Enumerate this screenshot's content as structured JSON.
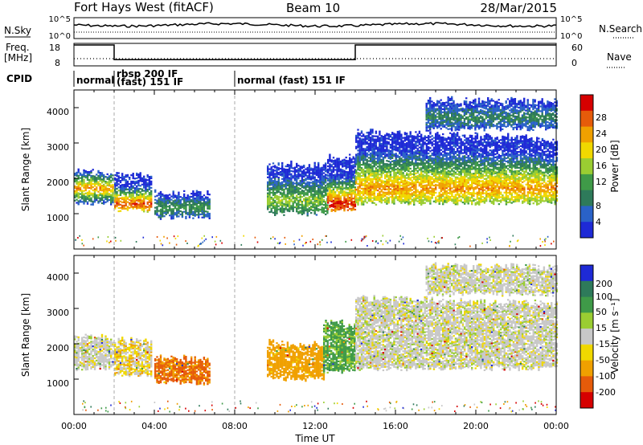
{
  "header": {
    "radar": "Fort Hays West (fitACF)",
    "beam": "Beam 10",
    "date": "28/Mar/2015"
  },
  "status_panel": {
    "nsky_label": "N.Sky",
    "nsearch_label": "N.Search",
    "nsky_ticks": [
      "10^5",
      "10^0"
    ],
    "nsearch_ticks": [
      "10^5",
      "10^0"
    ],
    "freq_label": "Freq.",
    "freq_unit": "[MHz]",
    "freq_ticks": [
      "18",
      "8"
    ],
    "nave_label": "Nave",
    "nave_ticks": [
      "60",
      "0"
    ],
    "cpid_label": "CPID",
    "cpid_segments": [
      {
        "label": "normal",
        "start_hour": 0,
        "end_hour": 2
      },
      {
        "label": "rbsp 200 IF",
        "start_hour": 2,
        "end_hour": 8
      },
      {
        "label": "(fast) 151 IF",
        "start_hour": 2,
        "end_hour": 8
      },
      {
        "label": "normal (fast) 151 IF",
        "start_hour": 8,
        "end_hour": 24
      }
    ],
    "freq_mhz": [
      {
        "start_hour": 0,
        "end_hour": 2,
        "value": 18
      },
      {
        "start_hour": 2,
        "end_hour": 14,
        "value": 11
      },
      {
        "start_hour": 14,
        "end_hour": 24,
        "value": 18
      }
    ]
  },
  "chart_data": [
    {
      "type": "heatmap",
      "panel": "power",
      "ylabel": "Slant Range [km]",
      "ylim": [
        0,
        4500
      ],
      "yticks": [
        "1000",
        "2000",
        "3000",
        "4000"
      ],
      "xlim_hours": [
        0,
        24
      ],
      "colorbar_label": "Power [dB]",
      "colorbar_ticks": [
        "4",
        "8",
        "12",
        "16",
        "20",
        "24",
        "28"
      ],
      "colors": [
        "#1e2ad6",
        "#2a62c8",
        "#2e7a5a",
        "#3f9a48",
        "#9acd32",
        "#f0d800",
        "#f0a000",
        "#e65b0a",
        "#d60000"
      ],
      "regions": [
        {
          "start_hour": 0,
          "end_hour": 1.9,
          "range_km": [
            1300,
            2200
          ],
          "core_km": 1700,
          "peak_db": 22
        },
        {
          "start_hour": 2,
          "end_hour": 3.8,
          "range_km": [
            1100,
            2100
          ],
          "core_km": 1250,
          "peak_db": 26
        },
        {
          "start_hour": 4,
          "end_hour": 6.7,
          "range_km": [
            900,
            1600
          ],
          "core_km": 1150,
          "peak_db": 10
        },
        {
          "start_hour": 9.6,
          "end_hour": 12.6,
          "range_km": [
            1000,
            2400
          ],
          "core_km": 1350,
          "peak_db": 14
        },
        {
          "start_hour": 12.6,
          "end_hour": 14.0,
          "range_km": [
            1100,
            2600
          ],
          "core_km": 1250,
          "peak_db": 28
        },
        {
          "start_hour": 14.0,
          "end_hour": 24,
          "range_km": [
            1300,
            3300
          ],
          "core_km": 1700,
          "peak_db": 22
        },
        {
          "start_hour": 17.5,
          "end_hour": 24,
          "range_km": [
            3400,
            4200
          ],
          "core_km": 3700,
          "peak_db": 8
        }
      ]
    },
    {
      "type": "heatmap",
      "panel": "velocity",
      "ylabel": "Slant Range [km]",
      "ylim": [
        0,
        4500
      ],
      "yticks": [
        "1000",
        "2000",
        "3000",
        "4000"
      ],
      "xlim_hours": [
        0,
        24
      ],
      "xticks": [
        "00:00",
        "04:00",
        "08:00",
        "12:00",
        "16:00",
        "20:00",
        "00:00"
      ],
      "xlabel": "Time UT",
      "colorbar_label": "Velocity [m s⁻¹]",
      "colorbar_ticks": [
        "200",
        "100",
        "50",
        "15",
        "-15",
        "-50",
        "-100",
        "-200"
      ],
      "colors": [
        "#1e2ad6",
        "#2e7a5a",
        "#3f9a48",
        "#9acd32",
        "#c8c8c8",
        "#f0d800",
        "#f0a000",
        "#e65b0a",
        "#d60000"
      ],
      "regions": [
        {
          "start_hour": 0,
          "end_hour": 1.9,
          "range_km": [
            1300,
            2200
          ],
          "velocity": 0
        },
        {
          "start_hour": 2,
          "end_hour": 3.8,
          "range_km": [
            1100,
            2100
          ],
          "velocity": -20
        },
        {
          "start_hour": 4,
          "end_hour": 6.7,
          "range_km": [
            900,
            1600
          ],
          "velocity": -80
        },
        {
          "start_hour": 9.6,
          "end_hour": 12.4,
          "range_km": [
            1000,
            2000
          ],
          "velocity": -50
        },
        {
          "start_hour": 12.4,
          "end_hour": 14.0,
          "range_km": [
            1200,
            2600
          ],
          "velocity": 40
        },
        {
          "start_hour": 14.0,
          "end_hour": 24,
          "range_km": [
            1300,
            3300
          ],
          "velocity": 0
        },
        {
          "start_hour": 17.5,
          "end_hour": 24,
          "range_km": [
            3400,
            4200
          ],
          "velocity": 0
        }
      ]
    }
  ]
}
